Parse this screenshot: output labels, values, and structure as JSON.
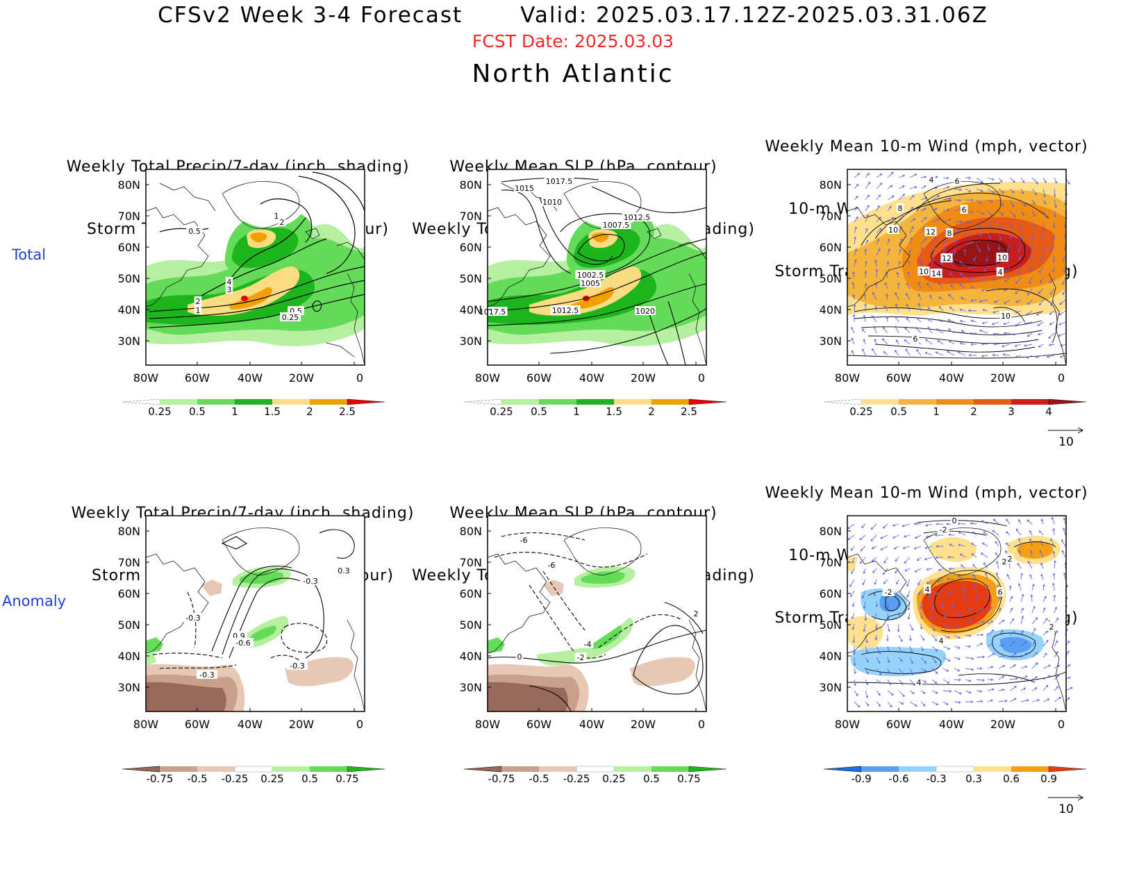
{
  "header": {
    "title": "CFSv2 Week 3-4 Forecast       Valid: 2025.03.17.12Z-2025.03.31.06Z",
    "fcst_date": "FCST Date: 2025.03.03",
    "region": "North Atlantic"
  },
  "rows": {
    "total": "Total",
    "anomaly": "Anomaly"
  },
  "panel_titles": {
    "precip": [
      "Weekly Total Precip/7-day (inch, shading)",
      "Storm Track Density/7-day (contour)"
    ],
    "slp": [
      "Weekly Mean SLP (hPa, contour)",
      "Weekly Total Precip/7-day (inch, shading)"
    ],
    "wind": [
      "Weekly Mean 10-m Wind (mph, vector)",
      "10-m Wind Speed (mph, contour)",
      "Storm Track Density/7-day (shading)"
    ]
  },
  "axes": {
    "lat_labels": [
      "80N",
      "70N",
      "60N",
      "50N",
      "40N",
      "30N"
    ],
    "lon_labels": [
      "80W",
      "60W",
      "40W",
      "20W",
      "0"
    ]
  },
  "colorbars": {
    "precip_total": [
      "0.25",
      "0.5",
      "1",
      "1.5",
      "2",
      "2.5"
    ],
    "std_total": [
      "0.25",
      "0.5",
      "1",
      "2",
      "3",
      "4"
    ],
    "precip_anom": [
      "-0.75",
      "-0.5",
      "-0.25",
      "0.25",
      "0.5",
      "0.75"
    ],
    "std_anom": [
      "-0.9",
      "-0.6",
      "-0.3",
      "0.3",
      "0.6",
      "0.9"
    ]
  },
  "colors": {
    "precip_total": [
      "#ffffff",
      "#b4f0a0",
      "#64dc5a",
      "#1eb41e",
      "#fadc82",
      "#f0a000",
      "#e60000"
    ],
    "std_total": [
      "#ffffff",
      "#ffe08c",
      "#f5b43c",
      "#f08c14",
      "#e65a14",
      "#c81e1e",
      "#961414"
    ],
    "precip_anom": [
      "#96695a",
      "#c8a08c",
      "#e6c8b4",
      "#ffffff",
      "#b4f0a0",
      "#64dc5a",
      "#1eb41e"
    ],
    "std_anom": [
      "#1e6ee6",
      "#5aa0f0",
      "#96d2fa",
      "#ffffff",
      "#ffe08c",
      "#f5a014",
      "#e63c14"
    ],
    "red_label": "#f02828",
    "blue_label": "#1f3fd6",
    "vector": "#6464e6"
  },
  "wind_ref": "10",
  "contour_labels": {
    "p_total": [
      "1",
      "2",
      "0.5",
      "4",
      "3",
      "2",
      "1",
      "0.5",
      "0.25"
    ],
    "s_total": [
      "1017.5",
      "1015",
      "1010",
      "1012.5",
      "1007.5",
      "1002.5",
      "1005",
      "1012.5",
      "1020",
      "1017.5"
    ],
    "w_total": [
      "4",
      "6",
      "8",
      "6",
      "10",
      "12",
      "8",
      "12",
      "10",
      "10",
      "14",
      "4",
      "10",
      "6"
    ],
    "p_anom": [
      "0.3",
      "-0.3",
      "-0.3",
      "0.9",
      "-0.6",
      "-0.3",
      "-0.3"
    ],
    "s_anom": [
      "-6",
      "-6",
      "-4",
      "-2",
      "0",
      "2"
    ],
    "w_anom": [
      "0",
      "-2",
      "2",
      "2",
      "-2",
      "4",
      "6",
      "4",
      "2",
      "4"
    ]
  }
}
